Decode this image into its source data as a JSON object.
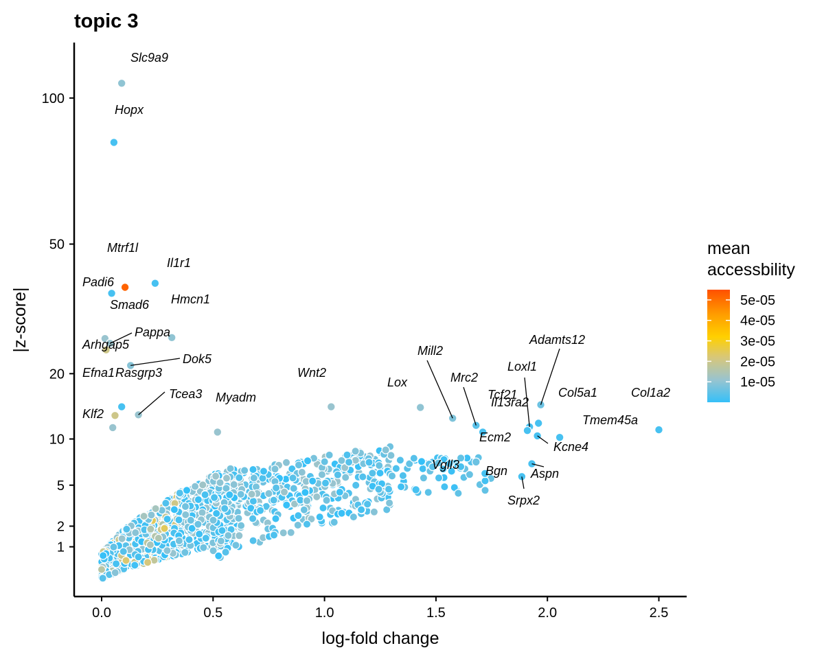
{
  "chart_data": {
    "type": "scatter",
    "title": "topic 3",
    "xlabel": "log-fold change",
    "ylabel": "|z-score|",
    "x_scale": "linear",
    "y_scale": "sqrt",
    "xlim": [
      -0.12,
      2.62
    ],
    "ylim": [
      0.7,
      117
    ],
    "x_ticks": [
      0.0,
      0.5,
      1.0,
      1.5,
      2.0,
      2.5
    ],
    "x_tick_labels": [
      "0.0",
      "0.5",
      "1.0",
      "1.5",
      "2.0",
      "2.5"
    ],
    "y_ticks": [
      1,
      2,
      5,
      10,
      20,
      50,
      100
    ],
    "y_tick_labels": [
      "1",
      "2",
      "5",
      "10",
      "20",
      "50",
      "100"
    ],
    "grid": false,
    "legend": {
      "title": "mean\naccessbility",
      "placement": "right",
      "type": "colorbar",
      "colors": [
        "#35c0f8",
        "#99c4cf",
        "#d8c779",
        "#ffd000",
        "#ff9d00",
        "#ff5000"
      ],
      "range": [
        0,
        5.5e-05
      ],
      "ticks": [
        1e-05,
        2e-05,
        3e-05,
        4e-05,
        5e-05
      ],
      "tick_labels": [
        "1e-05",
        "2e-05",
        "3e-05",
        "4e-05",
        "5e-05"
      ]
    },
    "labeled_points": [
      {
        "gene": "Slc9a9",
        "x": 0.09,
        "y": 106,
        "acc": 1e-05
      },
      {
        "gene": "Hopx",
        "x": 0.055,
        "y": 83,
        "acc": 2e-06
      },
      {
        "gene": "Mtrf1l",
        "x": 0.105,
        "y": 38.5,
        "acc": 5.2e-05
      },
      {
        "gene": "Il1r1",
        "x": 0.24,
        "y": 39.5,
        "acc": 2e-06
      },
      {
        "gene": "Padi6",
        "x": 0.045,
        "y": 37,
        "acc": 2e-06
      },
      {
        "gene": "Hmcn1",
        "x": 0.315,
        "y": 27,
        "acc": 1e-05
      },
      {
        "gene": "Smad6",
        "x": 0.015,
        "y": 26.8,
        "acc": 1.1e-05
      },
      {
        "gene": "Pappa",
        "x": 0.038,
        "y": 25.8,
        "acc": 1.1e-05
      },
      {
        "gene": "Arhgap5",
        "x": 0.02,
        "y": 24.5,
        "acc": 2e-05
      },
      {
        "gene": "Dok5",
        "x": 0.13,
        "y": 21.5,
        "acc": 9e-06
      },
      {
        "gene": "Efna1",
        "x": 0.09,
        "y": 14.5,
        "acc": 2e-06
      },
      {
        "gene": "Rasgrp3",
        "x": 0.06,
        "y": 13.2,
        "acc": 2e-05
      },
      {
        "gene": "Tcea3",
        "x": 0.165,
        "y": 13.3,
        "acc": 1.1e-05
      },
      {
        "gene": "Klf2",
        "x": 0.05,
        "y": 11.5,
        "acc": 1.1e-05
      },
      {
        "gene": "Myadm",
        "x": 0.52,
        "y": 10.9,
        "acc": 1.1e-05
      },
      {
        "gene": "Wnt2",
        "x": 1.03,
        "y": 14.5,
        "acc": 1.1e-05
      },
      {
        "gene": "Lox",
        "x": 1.43,
        "y": 14.4,
        "acc": 1e-05
      },
      {
        "gene": "Mill2",
        "x": 1.575,
        "y": 12.8,
        "acc": 8e-06
      },
      {
        "gene": "Mrc2",
        "x": 1.68,
        "y": 11.8,
        "acc": 4e-06
      },
      {
        "gene": "Tcf21",
        "x": 1.71,
        "y": 10.9,
        "acc": 2e-06
      },
      {
        "gene": "Loxl1",
        "x": 1.92,
        "y": 11.6,
        "acc": 2e-06
      },
      {
        "gene": "Adamts12",
        "x": 1.97,
        "y": 14.8,
        "acc": 6e-06
      },
      {
        "gene": "Col5a1",
        "x": 1.96,
        "y": 12.1,
        "acc": 2e-06
      },
      {
        "gene": "Il13ra2",
        "x": 1.91,
        "y": 11.1,
        "acc": 2e-06
      },
      {
        "gene": "Tmem45a",
        "x": 2.055,
        "y": 10.2,
        "acc": 2e-06
      },
      {
        "gene": "Col1a2",
        "x": 2.5,
        "y": 11.2,
        "acc": 2e-06
      },
      {
        "gene": "Kcne4",
        "x": 1.955,
        "y": 10.4,
        "acc": 2e-06
      },
      {
        "gene": "Ecm2",
        "x": 1.68,
        "y": 7.3,
        "acc": 6e-06
      },
      {
        "gene": "Aspn",
        "x": 1.93,
        "y": 7.1,
        "acc": 2e-06
      },
      {
        "gene": "Vgll3",
        "x": 1.41,
        "y": 4.6,
        "acc": 2e-06
      },
      {
        "gene": "Bgn",
        "x": 1.72,
        "y": 6.1,
        "acc": 2e-06
      },
      {
        "gene": "Srpx2",
        "x": 1.885,
        "y": 5.8,
        "acc": 2e-06
      }
    ]
  }
}
